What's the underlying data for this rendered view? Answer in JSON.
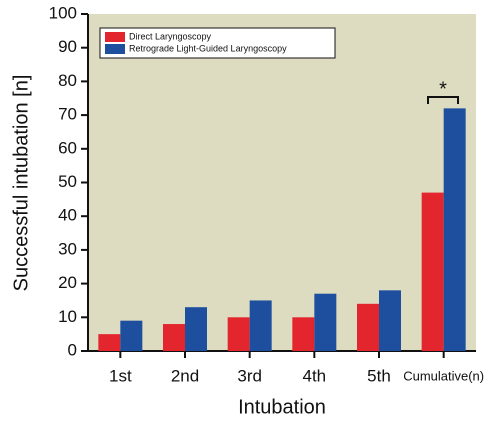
{
  "chart_data": {
    "type": "bar",
    "x_label": "Intubation",
    "y_label": "Successful intubation [n]",
    "categories": [
      "1st",
      "2nd",
      "3rd",
      "4th",
      "5th",
      "Cumulative(n)"
    ],
    "series": [
      {
        "name": "Direct Laryngoscopy",
        "color": "#e3262e",
        "values": [
          5,
          8,
          10,
          10,
          14,
          47
        ]
      },
      {
        "name": "Retrograde Light-Guided Laryngoscopy",
        "color": "#1d4f9e",
        "values": [
          9,
          13,
          15,
          17,
          18,
          72
        ]
      }
    ],
    "annotation": "*",
    "ylim": [
      0,
      100
    ],
    "yticks": [
      0,
      10,
      20,
      30,
      40,
      50,
      60,
      70,
      80,
      90,
      100
    ],
    "legend": "top-left",
    "background": "#dedcc0"
  }
}
